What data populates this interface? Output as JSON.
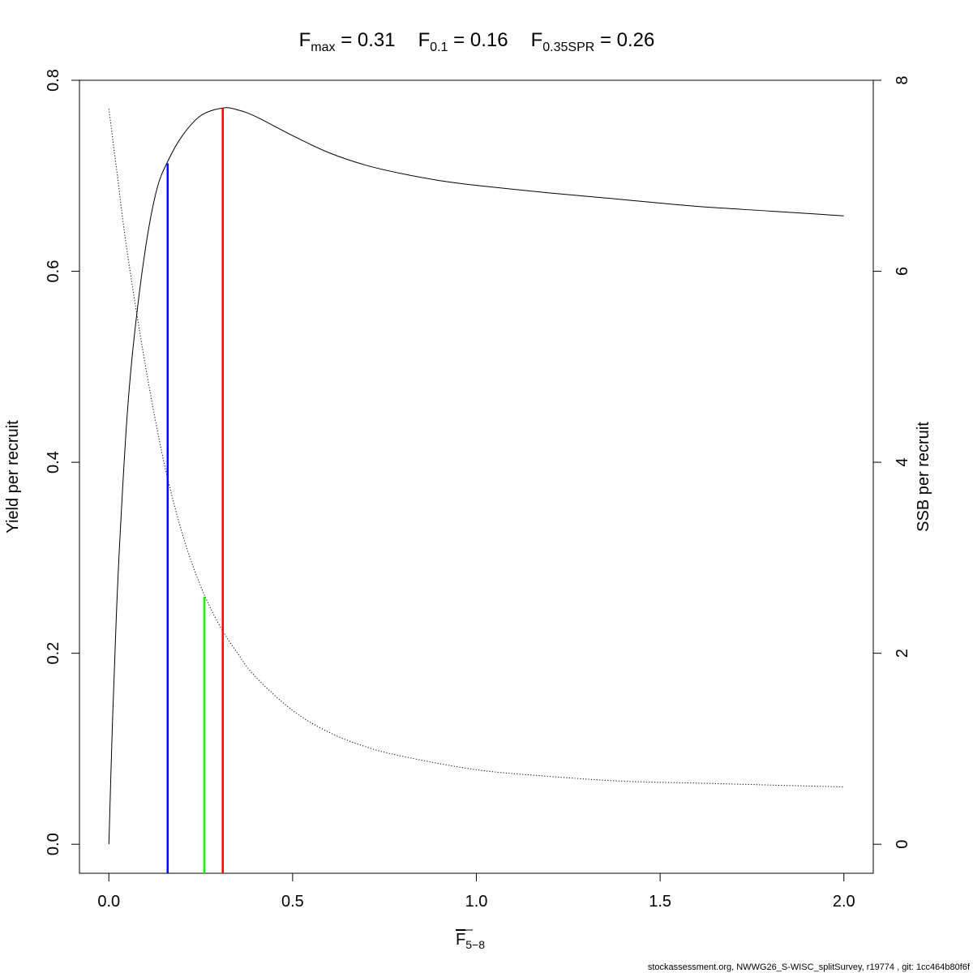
{
  "title_parts": [
    {
      "main": "F",
      "sub": "max",
      "value": " = 0.31"
    },
    {
      "main": "F",
      "sub": "0.1",
      "value": " = 0.16"
    },
    {
      "main": "F",
      "sub": "0.35SPR",
      "value": " = 0.26"
    }
  ],
  "footer": "stockassessment.org, NWWG26_S-WISC_splitSurvey, r19774 , git: 1cc464b80f6f",
  "chart_data": {
    "type": "line",
    "xlabel": {
      "main": "F",
      "sub": "5−8"
    },
    "ylabel": "Yield per recruit",
    "y2label": "SSB per recruit",
    "xlim": [
      -0.08,
      2.08
    ],
    "ylim": [
      -0.0304,
      0.8
    ],
    "y2lim": [
      -0.304,
      8.0
    ],
    "xticks": [
      0.0,
      0.5,
      1.0,
      1.5,
      2.0
    ],
    "xtick_labels": [
      "0.0",
      "0.5",
      "1.0",
      "1.5",
      "2.0"
    ],
    "yticks": [
      0.0,
      0.2,
      0.4,
      0.6,
      0.8
    ],
    "ytick_labels": [
      "0.0",
      "0.2",
      "0.4",
      "0.6",
      "0.8"
    ],
    "y2ticks": [
      0,
      2,
      4,
      6,
      8
    ],
    "y2tick_labels": [
      "0",
      "2",
      "4",
      "6",
      "8"
    ],
    "series": [
      {
        "style": "solid",
        "axis": "left",
        "x": [
          0.0,
          0.01,
          0.02,
          0.03,
          0.05,
          0.07,
          0.1,
          0.13,
          0.16,
          0.2,
          0.25,
          0.31,
          0.35,
          0.4,
          0.5,
          0.6,
          0.7,
          0.8,
          0.9,
          1.0,
          1.2,
          1.4,
          1.6,
          1.8,
          2.0
        ],
        "y": [
          0.0,
          0.13,
          0.235,
          0.32,
          0.45,
          0.535,
          0.625,
          0.685,
          0.715,
          0.742,
          0.763,
          0.771,
          0.769,
          0.762,
          0.742,
          0.724,
          0.711,
          0.702,
          0.695,
          0.69,
          0.682,
          0.675,
          0.668,
          0.663,
          0.658
        ]
      },
      {
        "style": "dotted",
        "axis": "right",
        "x": [
          0.0,
          0.02,
          0.05,
          0.1,
          0.15,
          0.2,
          0.25,
          0.3,
          0.35,
          0.4,
          0.5,
          0.6,
          0.7,
          0.8,
          1.0,
          1.2,
          1.4,
          1.6,
          1.8,
          2.0
        ],
        "y": [
          7.7,
          7.1,
          6.2,
          5.0,
          4.0,
          3.25,
          2.7,
          2.3,
          2.0,
          1.75,
          1.4,
          1.17,
          1.02,
          0.92,
          0.78,
          0.71,
          0.66,
          0.64,
          0.62,
          0.6
        ]
      }
    ],
    "reference_lines": [
      {
        "name": "F0.1",
        "x": 0.16,
        "y_top": 0.713,
        "color": "#0000ff"
      },
      {
        "name": "F0.35SPR",
        "x": 0.26,
        "y_top": 0.259,
        "color": "#00ff00"
      },
      {
        "name": "Fmax",
        "x": 0.31,
        "y_top": 0.771,
        "color": "#ff0000"
      }
    ],
    "grid": false
  }
}
